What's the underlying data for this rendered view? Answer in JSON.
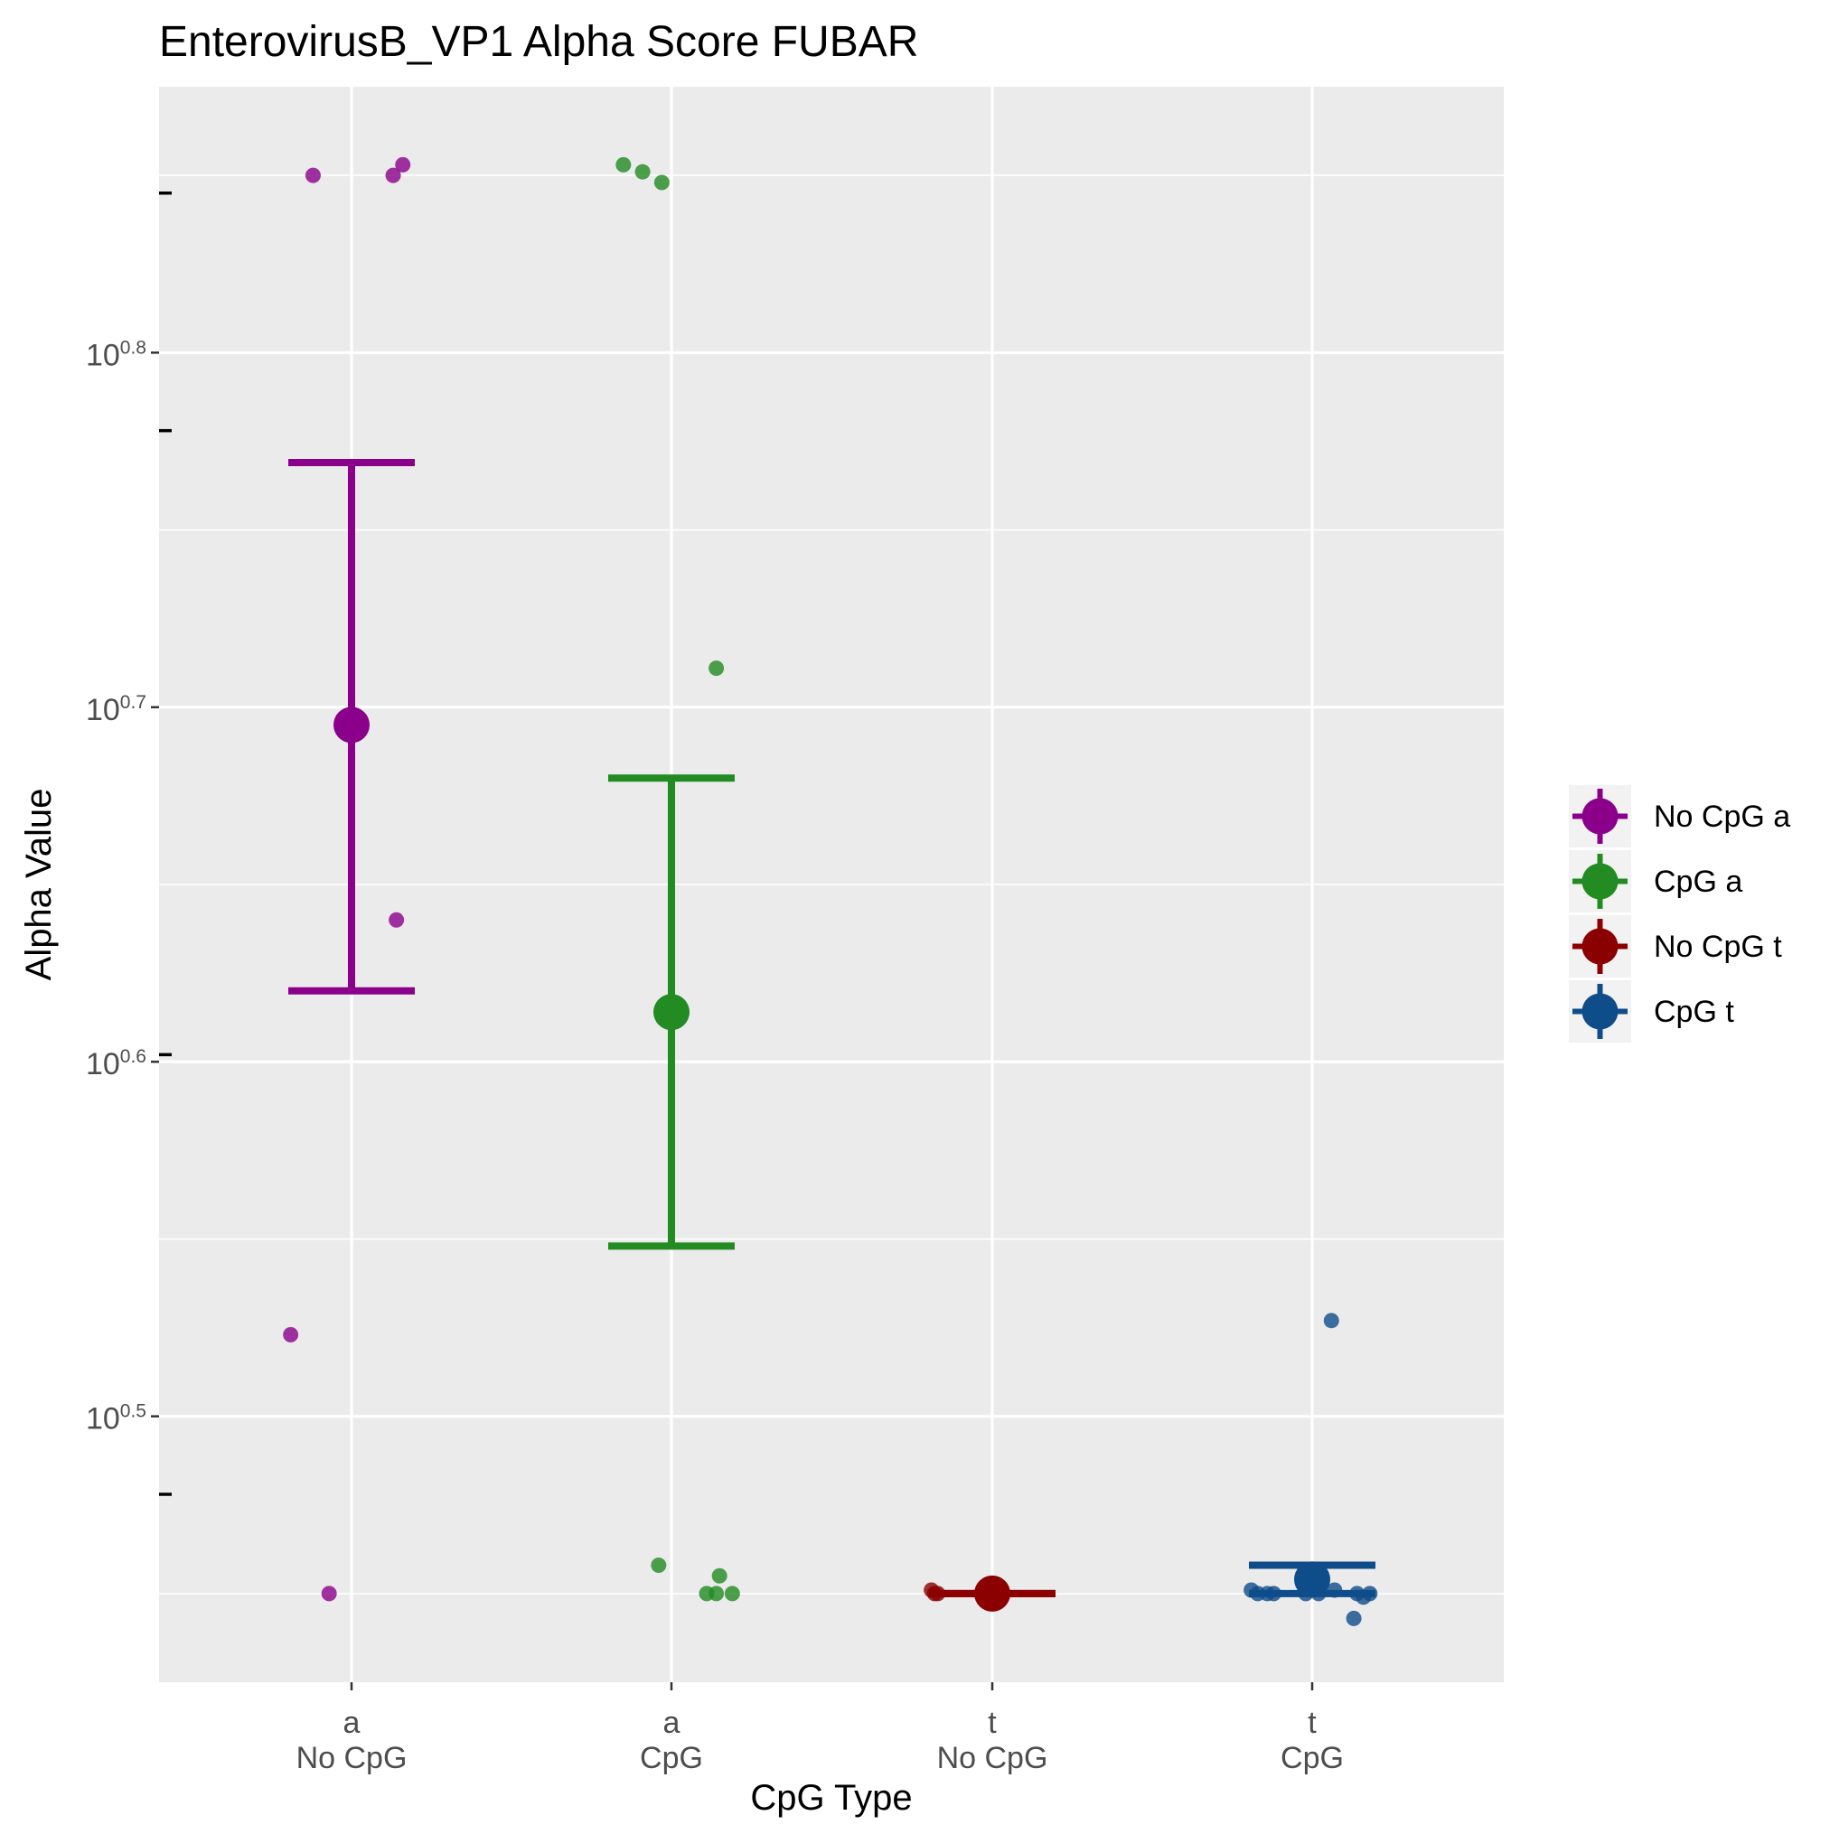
{
  "chart_data": {
    "type": "scatter",
    "title": "EnterovirusB_VP1 Alpha Score FUBAR",
    "xlabel": "CpG Type",
    "ylabel": "Alpha Value",
    "y_scale": "log10",
    "ylim_log10": [
      0.425,
      0.875
    ],
    "y_ticks": [
      {
        "log10": 0.5,
        "base": "10",
        "exp": "0.5"
      },
      {
        "log10": 0.6,
        "base": "10",
        "exp": "0.6"
      },
      {
        "log10": 0.7,
        "base": "10",
        "exp": "0.7"
      },
      {
        "log10": 0.8,
        "base": "10",
        "exp": "0.8"
      }
    ],
    "y_minor_ticks_log10": [
      0.45,
      0.55,
      0.65,
      0.75,
      0.85
    ],
    "extra_axis_ticks_log10": [
      0.478,
      0.602,
      0.778,
      0.845
    ],
    "categories": [
      {
        "top": "a",
        "bottom": "No CpG"
      },
      {
        "top": "a",
        "bottom": "CpG"
      },
      {
        "top": "t",
        "bottom": "No CpG"
      },
      {
        "top": "t",
        "bottom": "CpG"
      }
    ],
    "grid": true,
    "legend_position": "right",
    "series": [
      {
        "name": "No CpG a",
        "color": "#8B008B",
        "mean_log10": 0.695,
        "error_low_log10": 0.62,
        "error_high_log10": 0.769,
        "points": [
          {
            "x_offset": -0.12,
            "y_log10": 0.85
          },
          {
            "x_offset": 0.13,
            "y_log10": 0.85
          },
          {
            "x_offset": 0.16,
            "y_log10": 0.853
          },
          {
            "x_offset": 0.14,
            "y_log10": 0.64
          },
          {
            "x_offset": -0.19,
            "y_log10": 0.523
          },
          {
            "x_offset": -0.07,
            "y_log10": 0.45
          }
        ]
      },
      {
        "name": "CpG a",
        "color": "#228B22",
        "mean_log10": 0.614,
        "error_low_log10": 0.548,
        "error_high_log10": 0.68,
        "points": [
          {
            "x_offset": -0.15,
            "y_log10": 0.853
          },
          {
            "x_offset": -0.09,
            "y_log10": 0.851
          },
          {
            "x_offset": -0.03,
            "y_log10": 0.848
          },
          {
            "x_offset": 0.14,
            "y_log10": 0.711
          },
          {
            "x_offset": -0.04,
            "y_log10": 0.458
          },
          {
            "x_offset": 0.15,
            "y_log10": 0.455
          },
          {
            "x_offset": 0.11,
            "y_log10": 0.45
          },
          {
            "x_offset": 0.14,
            "y_log10": 0.45
          },
          {
            "x_offset": 0.19,
            "y_log10": 0.45
          }
        ]
      },
      {
        "name": "No CpG t",
        "color": "#8B0000",
        "mean_log10": 0.45,
        "error_low_log10": 0.45,
        "error_high_log10": 0.45,
        "points": [
          {
            "x_offset": -0.19,
            "y_log10": 0.451
          },
          {
            "x_offset": -0.18,
            "y_log10": 0.45
          },
          {
            "x_offset": -0.17,
            "y_log10": 0.45
          }
        ]
      },
      {
        "name": "CpG t",
        "color": "#0F4C8A",
        "mean_log10": 0.454,
        "error_low_log10": 0.45,
        "error_high_log10": 0.458,
        "points": [
          {
            "x_offset": 0.06,
            "y_log10": 0.527
          },
          {
            "x_offset": -0.19,
            "y_log10": 0.451
          },
          {
            "x_offset": -0.17,
            "y_log10": 0.45
          },
          {
            "x_offset": -0.14,
            "y_log10": 0.45
          },
          {
            "x_offset": -0.12,
            "y_log10": 0.45
          },
          {
            "x_offset": -0.02,
            "y_log10": 0.45
          },
          {
            "x_offset": 0.02,
            "y_log10": 0.45
          },
          {
            "x_offset": 0.07,
            "y_log10": 0.451
          },
          {
            "x_offset": 0.14,
            "y_log10": 0.45
          },
          {
            "x_offset": 0.16,
            "y_log10": 0.449
          },
          {
            "x_offset": 0.18,
            "y_log10": 0.45
          },
          {
            "x_offset": 0.13,
            "y_log10": 0.443
          }
        ]
      }
    ]
  }
}
